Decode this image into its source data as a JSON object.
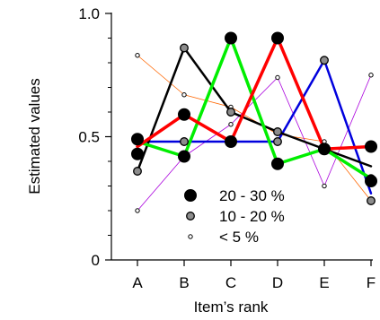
{
  "chart_data": {
    "type": "line",
    "title": "",
    "xlabel": "Item’s rank",
    "ylabel": "Estimated values",
    "categories": [
      "A",
      "B",
      "C",
      "D",
      "E",
      "F"
    ],
    "ylim": [
      0,
      1.0
    ],
    "yticks_labeled": [
      {
        "value": 0,
        "label": "0"
      },
      {
        "value": 0.5,
        "label": "0.5"
      },
      {
        "value": 1.0,
        "label": "1.0"
      }
    ],
    "yticks_minor": [
      0.1,
      0.2,
      0.3,
      0.4,
      0.6,
      0.7,
      0.8,
      0.9
    ],
    "grid": false,
    "legend_position": "lower-right",
    "legend": [
      {
        "label": "20 - 30 %",
        "marker": "large-black"
      },
      {
        "label": "10 - 20 %",
        "marker": "medium-gray"
      },
      {
        "label": "< 5 %",
        "marker": "small-white"
      }
    ],
    "series": [
      {
        "color": "#0000dd",
        "line_width": 2.5,
        "values": [
          0.48,
          0.48,
          0.48,
          0.48,
          0.81,
          0.27
        ]
      },
      {
        "color": "#000000",
        "line_width": 2.5,
        "values": [
          0.36,
          0.86,
          0.6,
          0.52,
          0.45,
          0.38
        ]
      },
      {
        "color": "#00ee00",
        "line_width": 3.5,
        "values": [
          0.48,
          0.42,
          0.9,
          0.39,
          0.45,
          0.33
        ]
      },
      {
        "color": "#ff0000",
        "line_width": 3.5,
        "values": [
          0.46,
          0.59,
          0.48,
          0.9,
          0.45,
          0.46
        ]
      },
      {
        "color": "#ff6600",
        "line_width": 0.8,
        "values": [
          0.83,
          0.67,
          0.62,
          0.51,
          0.48,
          0.24
        ]
      },
      {
        "color": "#aa00dd",
        "line_width": 0.8,
        "values": [
          0.2,
          0.42,
          0.55,
          0.74,
          0.3,
          0.75
        ]
      }
    ],
    "points": [
      {
        "category": "A",
        "value": 0.83,
        "size": "small"
      },
      {
        "category": "A",
        "value": 0.49,
        "size": "large"
      },
      {
        "category": "A",
        "value": 0.43,
        "size": "large"
      },
      {
        "category": "A",
        "value": 0.36,
        "size": "medium"
      },
      {
        "category": "A",
        "value": 0.2,
        "size": "small"
      },
      {
        "category": "B",
        "value": 0.86,
        "size": "medium"
      },
      {
        "category": "B",
        "value": 0.67,
        "size": "small"
      },
      {
        "category": "B",
        "value": 0.59,
        "size": "large"
      },
      {
        "category": "B",
        "value": 0.48,
        "size": "medium"
      },
      {
        "category": "B",
        "value": 0.42,
        "size": "large"
      },
      {
        "category": "C",
        "value": 0.9,
        "size": "large"
      },
      {
        "category": "C",
        "value": 0.62,
        "size": "small"
      },
      {
        "category": "C",
        "value": 0.6,
        "size": "medium"
      },
      {
        "category": "C",
        "value": 0.55,
        "size": "small"
      },
      {
        "category": "C",
        "value": 0.48,
        "size": "large"
      },
      {
        "category": "D",
        "value": 0.9,
        "size": "large"
      },
      {
        "category": "D",
        "value": 0.74,
        "size": "small"
      },
      {
        "category": "D",
        "value": 0.52,
        "size": "medium"
      },
      {
        "category": "D",
        "value": 0.48,
        "size": "medium"
      },
      {
        "category": "D",
        "value": 0.39,
        "size": "large"
      },
      {
        "category": "E",
        "value": 0.81,
        "size": "medium"
      },
      {
        "category": "E",
        "value": 0.48,
        "size": "small"
      },
      {
        "category": "E",
        "value": 0.45,
        "size": "large"
      },
      {
        "category": "E",
        "value": 0.3,
        "size": "small"
      },
      {
        "category": "F",
        "value": 0.75,
        "size": "small"
      },
      {
        "category": "F",
        "value": 0.46,
        "size": "large"
      },
      {
        "category": "F",
        "value": 0.33,
        "size": "medium"
      },
      {
        "category": "F",
        "value": 0.32,
        "size": "large"
      },
      {
        "category": "F",
        "value": 0.24,
        "size": "medium"
      }
    ]
  }
}
